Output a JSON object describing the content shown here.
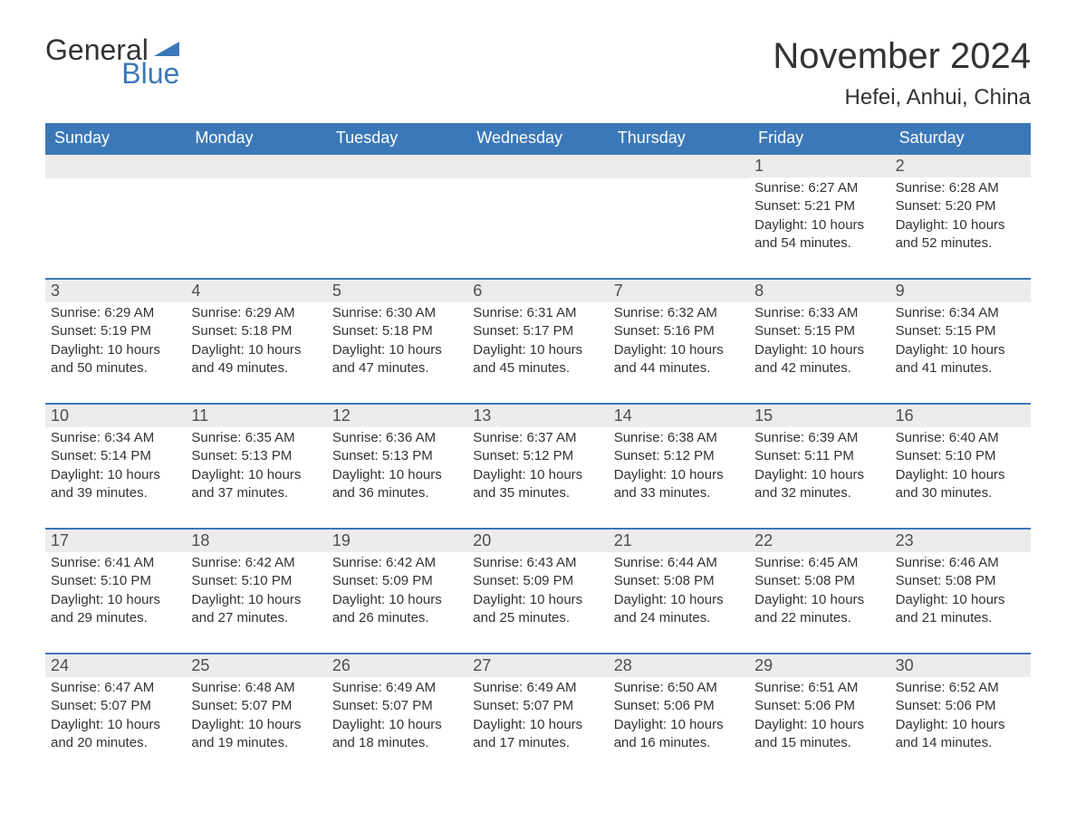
{
  "brand": {
    "line1": "General",
    "line2": "Blue",
    "triangle_color": "#3b78b8"
  },
  "title": {
    "month": "November 2024",
    "location": "Hefei, Anhui, China"
  },
  "colors": {
    "header_bg": "#3b78b8",
    "header_text": "#ffffff",
    "daynum_bg": "#ececec",
    "daynum_border": "#3b78b8",
    "body_text": "#333333",
    "page_bg": "#ffffff"
  },
  "typography": {
    "title_fontsize_pt": 30,
    "location_fontsize_pt": 18,
    "dow_fontsize_pt": 14,
    "daynum_fontsize_pt": 14,
    "body_fontsize_pt": 11,
    "font_family": "Segoe UI / Arial"
  },
  "layout": {
    "columns": 7,
    "rows": 5,
    "first_weekday": "Sunday",
    "leading_blank_cells": 5
  },
  "days_of_week": [
    "Sunday",
    "Monday",
    "Tuesday",
    "Wednesday",
    "Thursday",
    "Friday",
    "Saturday"
  ],
  "days": [
    {
      "n": 1,
      "sunrise": "6:27 AM",
      "sunset": "5:21 PM",
      "daylight": "10 hours and 54 minutes."
    },
    {
      "n": 2,
      "sunrise": "6:28 AM",
      "sunset": "5:20 PM",
      "daylight": "10 hours and 52 minutes."
    },
    {
      "n": 3,
      "sunrise": "6:29 AM",
      "sunset": "5:19 PM",
      "daylight": "10 hours and 50 minutes."
    },
    {
      "n": 4,
      "sunrise": "6:29 AM",
      "sunset": "5:18 PM",
      "daylight": "10 hours and 49 minutes."
    },
    {
      "n": 5,
      "sunrise": "6:30 AM",
      "sunset": "5:18 PM",
      "daylight": "10 hours and 47 minutes."
    },
    {
      "n": 6,
      "sunrise": "6:31 AM",
      "sunset": "5:17 PM",
      "daylight": "10 hours and 45 minutes."
    },
    {
      "n": 7,
      "sunrise": "6:32 AM",
      "sunset": "5:16 PM",
      "daylight": "10 hours and 44 minutes."
    },
    {
      "n": 8,
      "sunrise": "6:33 AM",
      "sunset": "5:15 PM",
      "daylight": "10 hours and 42 minutes."
    },
    {
      "n": 9,
      "sunrise": "6:34 AM",
      "sunset": "5:15 PM",
      "daylight": "10 hours and 41 minutes."
    },
    {
      "n": 10,
      "sunrise": "6:34 AM",
      "sunset": "5:14 PM",
      "daylight": "10 hours and 39 minutes."
    },
    {
      "n": 11,
      "sunrise": "6:35 AM",
      "sunset": "5:13 PM",
      "daylight": "10 hours and 37 minutes."
    },
    {
      "n": 12,
      "sunrise": "6:36 AM",
      "sunset": "5:13 PM",
      "daylight": "10 hours and 36 minutes."
    },
    {
      "n": 13,
      "sunrise": "6:37 AM",
      "sunset": "5:12 PM",
      "daylight": "10 hours and 35 minutes."
    },
    {
      "n": 14,
      "sunrise": "6:38 AM",
      "sunset": "5:12 PM",
      "daylight": "10 hours and 33 minutes."
    },
    {
      "n": 15,
      "sunrise": "6:39 AM",
      "sunset": "5:11 PM",
      "daylight": "10 hours and 32 minutes."
    },
    {
      "n": 16,
      "sunrise": "6:40 AM",
      "sunset": "5:10 PM",
      "daylight": "10 hours and 30 minutes."
    },
    {
      "n": 17,
      "sunrise": "6:41 AM",
      "sunset": "5:10 PM",
      "daylight": "10 hours and 29 minutes."
    },
    {
      "n": 18,
      "sunrise": "6:42 AM",
      "sunset": "5:10 PM",
      "daylight": "10 hours and 27 minutes."
    },
    {
      "n": 19,
      "sunrise": "6:42 AM",
      "sunset": "5:09 PM",
      "daylight": "10 hours and 26 minutes."
    },
    {
      "n": 20,
      "sunrise": "6:43 AM",
      "sunset": "5:09 PM",
      "daylight": "10 hours and 25 minutes."
    },
    {
      "n": 21,
      "sunrise": "6:44 AM",
      "sunset": "5:08 PM",
      "daylight": "10 hours and 24 minutes."
    },
    {
      "n": 22,
      "sunrise": "6:45 AM",
      "sunset": "5:08 PM",
      "daylight": "10 hours and 22 minutes."
    },
    {
      "n": 23,
      "sunrise": "6:46 AM",
      "sunset": "5:08 PM",
      "daylight": "10 hours and 21 minutes."
    },
    {
      "n": 24,
      "sunrise": "6:47 AM",
      "sunset": "5:07 PM",
      "daylight": "10 hours and 20 minutes."
    },
    {
      "n": 25,
      "sunrise": "6:48 AM",
      "sunset": "5:07 PM",
      "daylight": "10 hours and 19 minutes."
    },
    {
      "n": 26,
      "sunrise": "6:49 AM",
      "sunset": "5:07 PM",
      "daylight": "10 hours and 18 minutes."
    },
    {
      "n": 27,
      "sunrise": "6:49 AM",
      "sunset": "5:07 PM",
      "daylight": "10 hours and 17 minutes."
    },
    {
      "n": 28,
      "sunrise": "6:50 AM",
      "sunset": "5:06 PM",
      "daylight": "10 hours and 16 minutes."
    },
    {
      "n": 29,
      "sunrise": "6:51 AM",
      "sunset": "5:06 PM",
      "daylight": "10 hours and 15 minutes."
    },
    {
      "n": 30,
      "sunrise": "6:52 AM",
      "sunset": "5:06 PM",
      "daylight": "10 hours and 14 minutes."
    }
  ],
  "labels": {
    "sunrise": "Sunrise: ",
    "sunset": "Sunset: ",
    "daylight": "Daylight: "
  }
}
